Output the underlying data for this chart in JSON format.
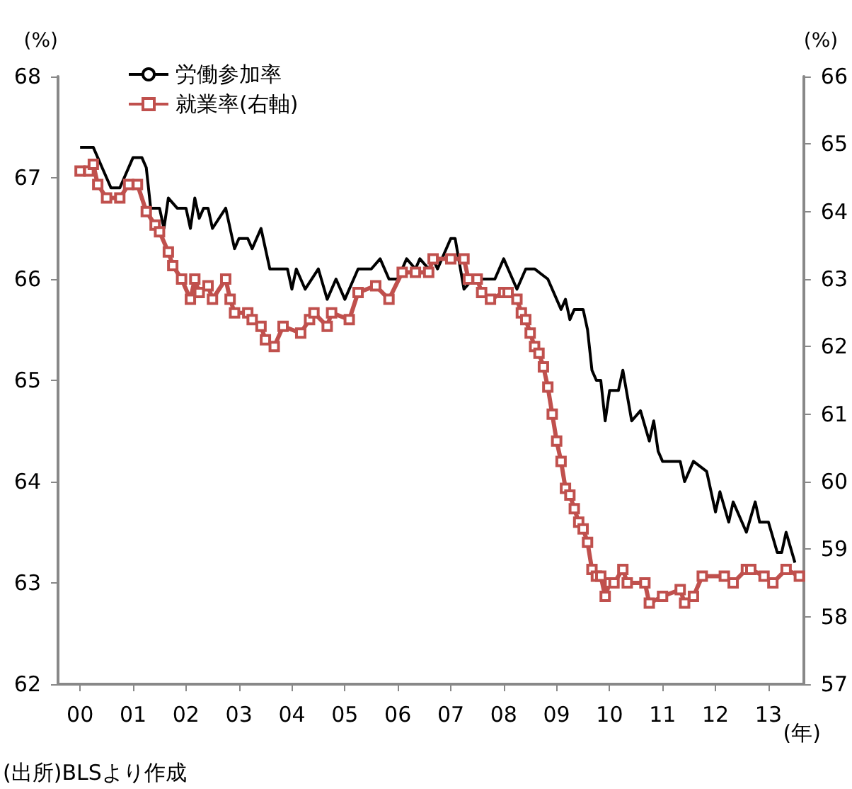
{
  "chart_data": {
    "type": "line",
    "ylabel": "(%)",
    "y2label": "(%)",
    "xlabel": "(年)",
    "annotations": [
      "(出所)BLSより作成"
    ],
    "xlim": [
      "1999-08",
      "2013-09"
    ],
    "xticks": [
      {
        "value": "2000-01",
        "label": "00"
      },
      {
        "value": "2001-01",
        "label": "01"
      },
      {
        "value": "2002-01",
        "label": "02"
      },
      {
        "value": "2003-01",
        "label": "03"
      },
      {
        "value": "2004-01",
        "label": "04"
      },
      {
        "value": "2005-01",
        "label": "05"
      },
      {
        "value": "2006-01",
        "label": "06"
      },
      {
        "value": "2007-01",
        "label": "07"
      },
      {
        "value": "2008-01",
        "label": "08"
      },
      {
        "value": "2009-01",
        "label": "09"
      },
      {
        "value": "2010-01",
        "label": "10"
      },
      {
        "value": "2011-01",
        "label": "11"
      },
      {
        "value": "2012-01",
        "label": "12"
      },
      {
        "value": "2013-01",
        "label": "13"
      }
    ],
    "ylim": [
      62,
      68
    ],
    "yticks": [
      62,
      63,
      64,
      65,
      66,
      67,
      68
    ],
    "y2lim": [
      57,
      66
    ],
    "y2ticks": [
      57,
      58,
      59,
      60,
      61,
      62,
      63,
      64,
      65,
      66
    ],
    "grid": false,
    "legend": "top left",
    "series": [
      {
        "name": "労働参加率",
        "color": "#000000",
        "marker": "none",
        "x": [
          "2000-01",
          "2000-04",
          "2000-06",
          "2000-08",
          "2000-10",
          "2001-01",
          "2001-03",
          "2001-04",
          "2001-05",
          "2001-07",
          "2001-08",
          "2001-09",
          "2001-11",
          "2002-01",
          "2002-02",
          "2002-03",
          "2002-04",
          "2002-05",
          "2002-06",
          "2002-07",
          "2002-10",
          "2002-12",
          "2003-01",
          "2003-03",
          "2003-04",
          "2003-05",
          "2003-06",
          "2003-08",
          "2003-12",
          "2004-01",
          "2004-02",
          "2004-04",
          "2004-07",
          "2004-09",
          "2004-11",
          "2005-01",
          "2005-04",
          "2005-07",
          "2005-09",
          "2005-11",
          "2006-01",
          "2006-03",
          "2006-05",
          "2006-06",
          "2006-08",
          "2006-09",
          "2006-10",
          "2007-01",
          "2007-02",
          "2007-04",
          "2007-06",
          "2007-09",
          "2007-11",
          "2008-01",
          "2008-02",
          "2008-04",
          "2008-06",
          "2008-08",
          "2008-11",
          "2009-01",
          "2009-02",
          "2009-03",
          "2009-04",
          "2009-05",
          "2009-07",
          "2009-08",
          "2009-09",
          "2009-10",
          "2009-11",
          "2009-12",
          "2010-01",
          "2010-03",
          "2010-04",
          "2010-06",
          "2010-08",
          "2010-10",
          "2010-11",
          "2010-12",
          "2011-01",
          "2011-05",
          "2011-06",
          "2011-08",
          "2011-11",
          "2012-01",
          "2012-02",
          "2012-04",
          "2012-05",
          "2012-08",
          "2012-10",
          "2012-11",
          "2013-01",
          "2013-03",
          "2013-04",
          "2013-05",
          "2013-07"
        ],
        "values": [
          67.3,
          67.3,
          67.1,
          66.9,
          66.9,
          67.2,
          67.2,
          67.1,
          66.7,
          66.7,
          66.5,
          66.8,
          66.7,
          66.7,
          66.5,
          66.8,
          66.6,
          66.7,
          66.7,
          66.5,
          66.7,
          66.3,
          66.4,
          66.4,
          66.3,
          66.4,
          66.5,
          66.1,
          66.1,
          65.9,
          66.1,
          65.9,
          66.1,
          65.8,
          66.0,
          65.8,
          66.1,
          66.1,
          66.2,
          66.0,
          66.0,
          66.2,
          66.1,
          66.2,
          66.1,
          66.2,
          66.1,
          66.4,
          66.4,
          65.9,
          66.0,
          66.0,
          66.0,
          66.2,
          66.1,
          65.9,
          66.1,
          66.1,
          66.0,
          65.8,
          65.7,
          65.8,
          65.6,
          65.7,
          65.7,
          65.5,
          65.1,
          65.0,
          65.0,
          64.6,
          64.9,
          64.9,
          65.1,
          64.6,
          64.7,
          64.4,
          64.6,
          64.3,
          64.2,
          64.2,
          64.0,
          64.2,
          64.1,
          63.7,
          63.9,
          63.6,
          63.8,
          63.5,
          63.8,
          63.6,
          63.6,
          63.3,
          63.3,
          63.5,
          63.2
        ]
      },
      {
        "name": "就業率(右軸)",
        "color": "#c0504d",
        "marker": "square",
        "axis": "y2",
        "x": [
          "2000-01",
          "2000-03",
          "2000-04",
          "2000-05",
          "2000-07",
          "2000-10",
          "2000-12",
          "2001-02",
          "2001-04",
          "2001-06",
          "2001-07",
          "2001-09",
          "2001-10",
          "2001-12",
          "2002-02",
          "2002-03",
          "2002-04",
          "2002-06",
          "2002-07",
          "2002-10",
          "2002-11",
          "2002-12",
          "2003-03",
          "2003-04",
          "2003-06",
          "2003-07",
          "2003-09",
          "2003-11",
          "2004-03",
          "2004-05",
          "2004-06",
          "2004-09",
          "2004-10",
          "2005-02",
          "2005-04",
          "2005-08",
          "2005-11",
          "2006-02",
          "2006-05",
          "2006-08",
          "2006-09",
          "2007-01",
          "2007-04",
          "2007-05",
          "2007-07",
          "2007-08",
          "2007-10",
          "2008-01",
          "2008-02",
          "2008-04",
          "2008-05",
          "2008-06",
          "2008-07",
          "2008-08",
          "2008-09",
          "2008-10",
          "2008-11",
          "2008-12",
          "2009-01",
          "2009-02",
          "2009-03",
          "2009-04",
          "2009-05",
          "2009-06",
          "2009-07",
          "2009-08",
          "2009-09",
          "2009-10",
          "2009-11",
          "2009-12",
          "2010-01",
          "2010-02",
          "2010-04",
          "2010-05",
          "2010-09",
          "2010-10",
          "2011-01",
          "2011-05",
          "2011-06",
          "2011-08",
          "2011-10",
          "2012-03",
          "2012-05",
          "2012-08",
          "2012-09",
          "2012-12",
          "2013-02",
          "2013-05",
          "2013-08"
        ],
        "values": [
          64.6,
          64.6,
          64.7,
          64.4,
          64.2,
          64.2,
          64.4,
          64.4,
          64.0,
          63.8,
          63.7,
          63.4,
          63.2,
          63.0,
          62.7,
          63.0,
          62.8,
          62.9,
          62.7,
          63.0,
          62.7,
          62.5,
          62.5,
          62.4,
          62.3,
          62.1,
          62.0,
          62.3,
          62.2,
          62.4,
          62.5,
          62.3,
          62.5,
          62.4,
          62.8,
          62.9,
          62.7,
          63.1,
          63.1,
          63.1,
          63.3,
          63.3,
          63.3,
          63.0,
          63.0,
          62.8,
          62.7,
          62.8,
          62.8,
          62.7,
          62.5,
          62.4,
          62.2,
          62.0,
          61.9,
          61.7,
          61.4,
          61.0,
          60.6,
          60.3,
          59.9,
          59.8,
          59.6,
          59.4,
          59.3,
          59.1,
          58.7,
          58.6,
          58.6,
          58.3,
          58.5,
          58.5,
          58.7,
          58.5,
          58.5,
          58.2,
          58.3,
          58.4,
          58.2,
          58.3,
          58.6,
          58.6,
          58.5,
          58.7,
          58.7,
          58.6,
          58.5,
          58.7,
          58.6
        ]
      }
    ]
  }
}
